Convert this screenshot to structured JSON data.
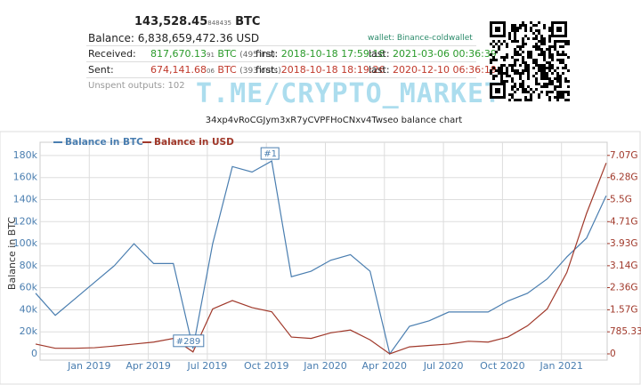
{
  "header": {
    "btc_main": "143,528.45",
    "btc_small": "848435",
    "btc_unit": "BTC",
    "balance_label": "Balance:",
    "balance_value": "6,838,659,472.36 USD",
    "wallet": "wallet: Binance-coldwallet",
    "received": {
      "label": "Received:",
      "main": "817,670.13",
      "small": "91",
      "unit": "BTC",
      "count": "(495 ins)",
      "first_label": "first:",
      "first": "2018-10-18 17:59:18",
      "last_label": "last:",
      "last": "2021-03-06 00:36:39"
    },
    "sent": {
      "label": "Sent:",
      "main": "674,141.68",
      "small": "06",
      "unit": "BTC",
      "count": "(393 outs)",
      "first_label": "first:",
      "first": "2018-10-18 18:19:26",
      "last_label": "last:",
      "last": "2020-12-10 06:36:19"
    },
    "unspent": "Unspent outputs: 102"
  },
  "watermark": "T.ME/CRYPTO_MARKET",
  "chart_data": {
    "type": "line",
    "title": "34xp4vRoCGJym3xR7yCVPFHoCNxv4Twseo balance chart",
    "y_label": "Balance in BTC",
    "grid": true,
    "x": [
      "2018-10",
      "2018-11",
      "2018-12",
      "2019-01",
      "2019-02",
      "2019-03",
      "2019-04",
      "2019-05",
      "2019-06",
      "2019-07",
      "2019-08",
      "2019-09",
      "2019-10",
      "2019-11",
      "2019-12",
      "2020-01",
      "2020-02",
      "2020-03",
      "2020-04",
      "2020-05",
      "2020-06",
      "2020-07",
      "2020-08",
      "2020-09",
      "2020-10",
      "2020-11",
      "2020-12",
      "2021-01",
      "2021-02",
      "2021-03"
    ],
    "xticks": [
      {
        "value": "2019-01",
        "label": "Jan 2019"
      },
      {
        "value": "2019-04",
        "label": "Apr 2019"
      },
      {
        "value": "2019-07",
        "label": "Jul 2019"
      },
      {
        "value": "2019-10",
        "label": "Oct 2019"
      },
      {
        "value": "2020-01",
        "label": "Jan 2020"
      },
      {
        "value": "2020-04",
        "label": "Apr 2020"
      },
      {
        "value": "2020-07",
        "label": "Jul 2020"
      },
      {
        "value": "2020-10",
        "label": "Oct 2020"
      },
      {
        "value": "2021-01",
        "label": "Jan 2021"
      }
    ],
    "ylim": [
      0,
      188000
    ],
    "yticks": [
      0,
      {
        "value": 20000,
        "label": "20k"
      },
      {
        "value": 40000,
        "label": "40k"
      },
      {
        "value": 60000,
        "label": "60k"
      },
      {
        "value": 80000,
        "label": "80k"
      },
      {
        "value": 100000,
        "label": "100k"
      },
      {
        "value": 120000,
        "label": "120k"
      },
      {
        "value": 140000,
        "label": "140k"
      },
      {
        "value": 160000,
        "label": "160k"
      },
      {
        "value": 180000,
        "label": "180k"
      }
    ],
    "y2lim": [
      0,
      7380000000
    ],
    "y2ticks": [
      0,
      {
        "value": 785330000,
        "label": "785.33M"
      },
      {
        "value": 1570000000,
        "label": "1.57G"
      },
      {
        "value": 2360000000,
        "label": "2.36G"
      },
      {
        "value": 3140000000,
        "label": "3.14G"
      },
      {
        "value": 3930000000,
        "label": "3.93G"
      },
      {
        "value": 4710000000,
        "label": "4.71G"
      },
      {
        "value": 5500000000,
        "label": "5.5G"
      },
      {
        "value": 6280000000,
        "label": "6.28G"
      },
      {
        "value": 7070000000,
        "label": "7.07G"
      }
    ],
    "series": [
      {
        "name": "Balance in BTC",
        "color": "#4a7eb0",
        "values": [
          55000,
          35000,
          50000,
          65000,
          80000,
          100000,
          82000,
          82000,
          5000,
          100000,
          170000,
          165000,
          175000,
          70000,
          75000,
          85000,
          90000,
          75000,
          0,
          25000,
          30000,
          38000,
          38000,
          38000,
          48000,
          55000,
          68000,
          88000,
          105000,
          143528
        ]
      },
      {
        "name": "Balance in USD",
        "color": "#a0382a",
        "axis": "y2",
        "values": [
          350000000,
          200000000,
          200000000,
          220000000,
          280000000,
          350000000,
          420000000,
          550000000,
          70000000,
          1600000000,
          1900000000,
          1650000000,
          1500000000,
          600000000,
          550000000,
          750000000,
          850000000,
          500000000,
          0,
          250000000,
          300000000,
          350000000,
          450000000,
          420000000,
          600000000,
          1000000000,
          1600000000,
          2900000000,
          5000000000,
          6800000000
        ]
      }
    ],
    "annotations": [
      "#1",
      "#289"
    ]
  }
}
